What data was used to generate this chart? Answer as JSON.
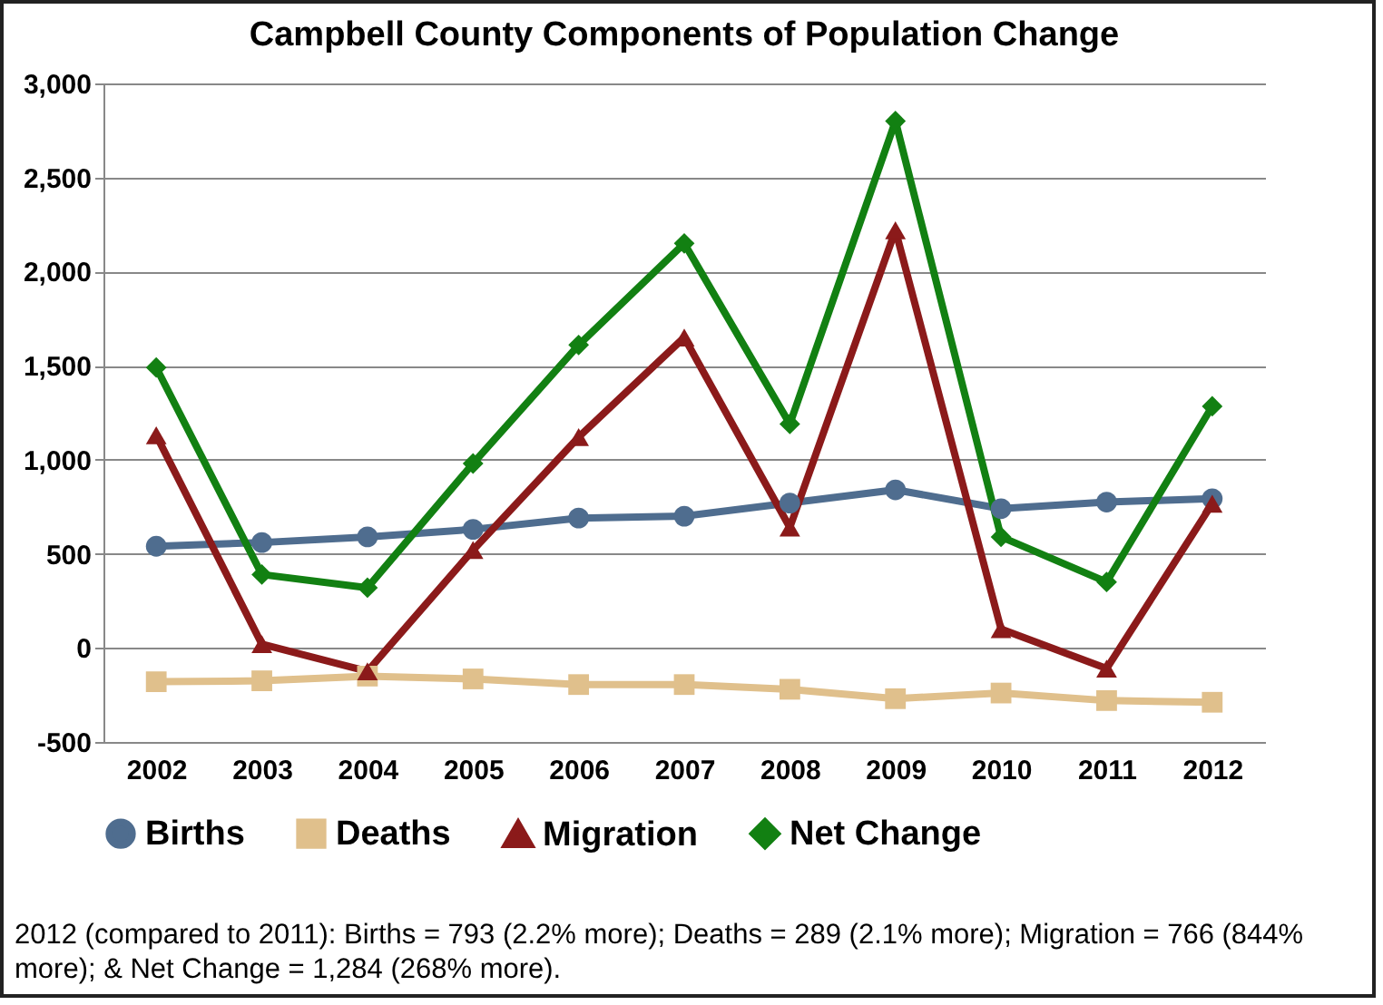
{
  "chart_data": {
    "type": "line",
    "title": "Campbell County Components of Population Change",
    "categories": [
      "2002",
      "2003",
      "2004",
      "2005",
      "2006",
      "2007",
      "2008",
      "2009",
      "2010",
      "2011",
      "2012"
    ],
    "series": [
      {
        "name": "Births",
        "color": "#4f6d8f",
        "marker": "circle",
        "values": [
          540,
          560,
          590,
          630,
          690,
          700,
          770,
          840,
          740,
          775,
          793
        ]
      },
      {
        "name": "Deaths",
        "color": "#e0c08c",
        "marker": "square",
        "values": [
          -180,
          -175,
          -150,
          -165,
          -195,
          -195,
          -220,
          -270,
          -240,
          -280,
          -289
        ]
      },
      {
        "name": "Migration",
        "color": "#8b1a1a",
        "marker": "triangle",
        "values": [
          1130,
          20,
          -125,
          520,
          1120,
          1650,
          640,
          2220,
          100,
          -110,
          766
        ]
      },
      {
        "name": "Net Change",
        "color": "#128012",
        "marker": "diamond",
        "values": [
          1490,
          390,
          320,
          980,
          1610,
          2150,
          1190,
          2800,
          590,
          350,
          1284
        ]
      }
    ],
    "ylim": [
      -500,
      3000
    ],
    "yticks": [
      {
        "value": -500,
        "label": "-500"
      },
      {
        "value": 0,
        "label": "0"
      },
      {
        "value": 500,
        "label": "500"
      },
      {
        "value": 1000,
        "label": "1,000"
      },
      {
        "value": 1500,
        "label": "1,500"
      },
      {
        "value": 2000,
        "label": "2,000"
      },
      {
        "value": 2500,
        "label": "2,500"
      },
      {
        "value": 3000,
        "label": "3,000"
      }
    ],
    "grid": "y",
    "legend": "bottom",
    "line_style": "solid",
    "annotations": [
      "2012 (compared to 2011): Births = 793 (2.2% more); Deaths = 289 (2.1% more); Migration = 766 (844% more); & Net Change = 1,284 (268% more)."
    ]
  }
}
